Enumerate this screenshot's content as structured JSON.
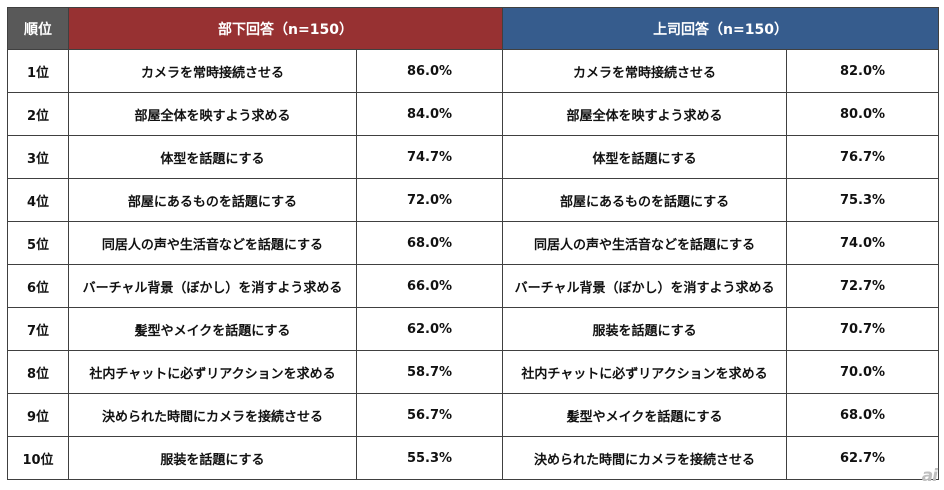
{
  "chart_data": {
    "type": "table",
    "headers": {
      "rank": "順位",
      "subordinate": "部下回答（n=150）",
      "boss": "上司回答（n=150）"
    },
    "rows": [
      {
        "rank": "1位",
        "sub_item": "カメラを常時接続させる",
        "sub_pct": "86.0%",
        "boss_item": "カメラを常時接続させる",
        "boss_pct": "82.0%"
      },
      {
        "rank": "2位",
        "sub_item": "部屋全体を映すよう求める",
        "sub_pct": "84.0%",
        "boss_item": "部屋全体を映すよう求める",
        "boss_pct": "80.0%"
      },
      {
        "rank": "3位",
        "sub_item": "体型を話題にする",
        "sub_pct": "74.7%",
        "boss_item": "体型を話題にする",
        "boss_pct": "76.7%"
      },
      {
        "rank": "4位",
        "sub_item": "部屋にあるものを話題にする",
        "sub_pct": "72.0%",
        "boss_item": "部屋にあるものを話題にする",
        "boss_pct": "75.3%"
      },
      {
        "rank": "5位",
        "sub_item": "同居人の声や生活音などを話題にする",
        "sub_pct": "68.0%",
        "boss_item": "同居人の声や生活音などを話題にする",
        "boss_pct": "74.0%"
      },
      {
        "rank": "6位",
        "sub_item": "バーチャル背景（ぼかし）を消すよう求める",
        "sub_pct": "66.0%",
        "boss_item": "バーチャル背景（ぼかし）を消すよう求める",
        "boss_pct": "72.7%"
      },
      {
        "rank": "7位",
        "sub_item": "髪型やメイクを話題にする",
        "sub_pct": "62.0%",
        "boss_item": "服装を話題にする",
        "boss_pct": "70.7%"
      },
      {
        "rank": "8位",
        "sub_item": "社内チャットに必ずリアクションを求める",
        "sub_pct": "58.7%",
        "boss_item": "社内チャットに必ずリアクションを求める",
        "boss_pct": "70.0%"
      },
      {
        "rank": "9位",
        "sub_item": "決められた時間にカメラを接続させる",
        "sub_pct": "56.7%",
        "boss_item": "髪型やメイクを話題にする",
        "boss_pct": "68.0%"
      },
      {
        "rank": "10位",
        "sub_item": "服装を話題にする",
        "sub_pct": "55.3%",
        "boss_item": "決められた時間にカメラを接続させる",
        "boss_pct": "62.7%"
      }
    ]
  },
  "colors": {
    "rank_header": "#595959",
    "subordinate_header": "#973132",
    "boss_header": "#365c8d"
  },
  "watermark": "ai"
}
